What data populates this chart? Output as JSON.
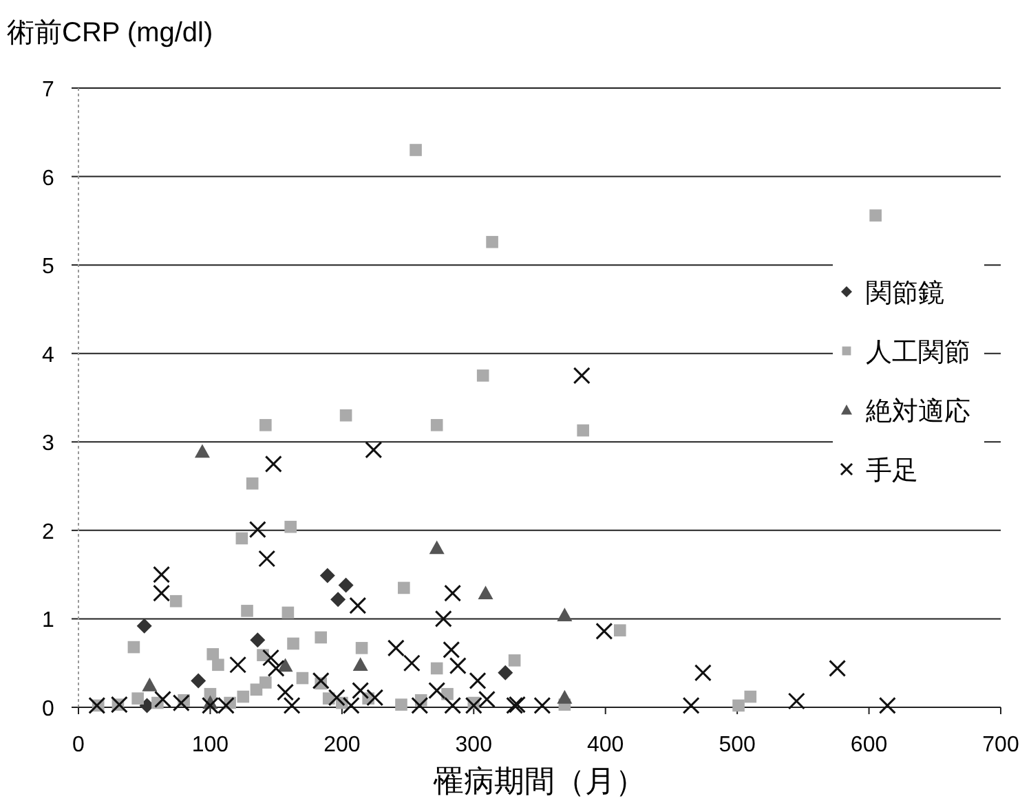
{
  "chart_data": {
    "type": "scatter",
    "ylabel": "術前CRP (mg/dl)",
    "xlabel": "罹病期間（月）",
    "xlim": [
      0,
      700
    ],
    "xticks": [
      0,
      100,
      200,
      300,
      400,
      500,
      600,
      700
    ],
    "ylim": [
      0,
      7
    ],
    "yticks": [
      0,
      1,
      2,
      3,
      4,
      5,
      6,
      7
    ],
    "grid": "y",
    "legend": "right",
    "series": [
      {
        "name": "関節鏡",
        "marker": "diamond",
        "color": "#333333",
        "x": [
          50,
          136,
          91,
          52,
          189,
          203,
          197,
          324
        ],
        "values": [
          0.92,
          0.76,
          0.3,
          0.02,
          1.49,
          1.38,
          1.22,
          0.39
        ]
      },
      {
        "name": "人工関節",
        "marker": "square",
        "color": "#aaaaaa",
        "x": [
          256,
          314,
          605,
          307,
          142,
          203,
          272,
          383,
          132,
          124,
          161,
          74,
          128,
          159,
          42,
          102,
          106,
          140,
          163,
          184,
          215,
          247,
          272,
          331,
          411,
          510,
          501,
          245,
          369,
          142,
          170,
          184,
          15,
          30,
          45,
          60,
          80,
          100,
          115,
          125,
          135,
          190,
          200,
          220,
          260,
          280,
          300
        ],
        "values": [
          6.3,
          5.26,
          5.56,
          3.75,
          3.19,
          3.3,
          3.19,
          3.13,
          2.53,
          1.91,
          2.04,
          1.2,
          1.09,
          1.07,
          0.68,
          0.6,
          0.48,
          0.59,
          0.72,
          0.79,
          0.67,
          1.35,
          0.44,
          0.53,
          0.87,
          0.12,
          0.02,
          0.03,
          0.03,
          0.28,
          0.33,
          0.27,
          0.02,
          0.03,
          0.1,
          0.05,
          0.08,
          0.15,
          0.05,
          0.12,
          0.2,
          0.1,
          0.05,
          0.1,
          0.08,
          0.15,
          0.05
        ]
      },
      {
        "name": "絶対適応",
        "marker": "triangle",
        "color": "#555555",
        "x": [
          94,
          272,
          309,
          369,
          214,
          369,
          54,
          157,
          100
        ],
        "values": [
          2.89,
          1.8,
          1.29,
          1.04,
          0.48,
          0.11,
          0.25,
          0.47,
          0.05
        ]
      },
      {
        "name": "手足",
        "marker": "cross",
        "color": "#111111",
        "x": [
          148,
          224,
          382,
          136,
          143,
          63,
          63,
          212,
          284,
          277,
          241,
          253,
          283,
          288,
          303,
          399,
          474,
          576,
          14,
          31,
          162,
          465,
          545,
          614,
          333,
          352,
          64,
          78,
          100,
          112,
          121,
          146,
          150,
          157,
          184,
          196,
          207,
          214,
          225,
          259,
          272,
          284,
          300,
          310,
          331
        ],
        "values": [
          2.75,
          2.91,
          3.75,
          2.01,
          1.68,
          1.5,
          1.29,
          1.15,
          1.29,
          1.0,
          0.67,
          0.5,
          0.65,
          0.47,
          0.3,
          0.86,
          0.39,
          0.44,
          0.02,
          0.03,
          0.02,
          0.02,
          0.07,
          0.02,
          0.03,
          0.02,
          0.09,
          0.05,
          0.02,
          0.02,
          0.48,
          0.56,
          0.44,
          0.17,
          0.3,
          0.11,
          0.02,
          0.19,
          0.11,
          0.02,
          0.19,
          0.02,
          0.02,
          0.09,
          0.02
        ]
      }
    ]
  }
}
